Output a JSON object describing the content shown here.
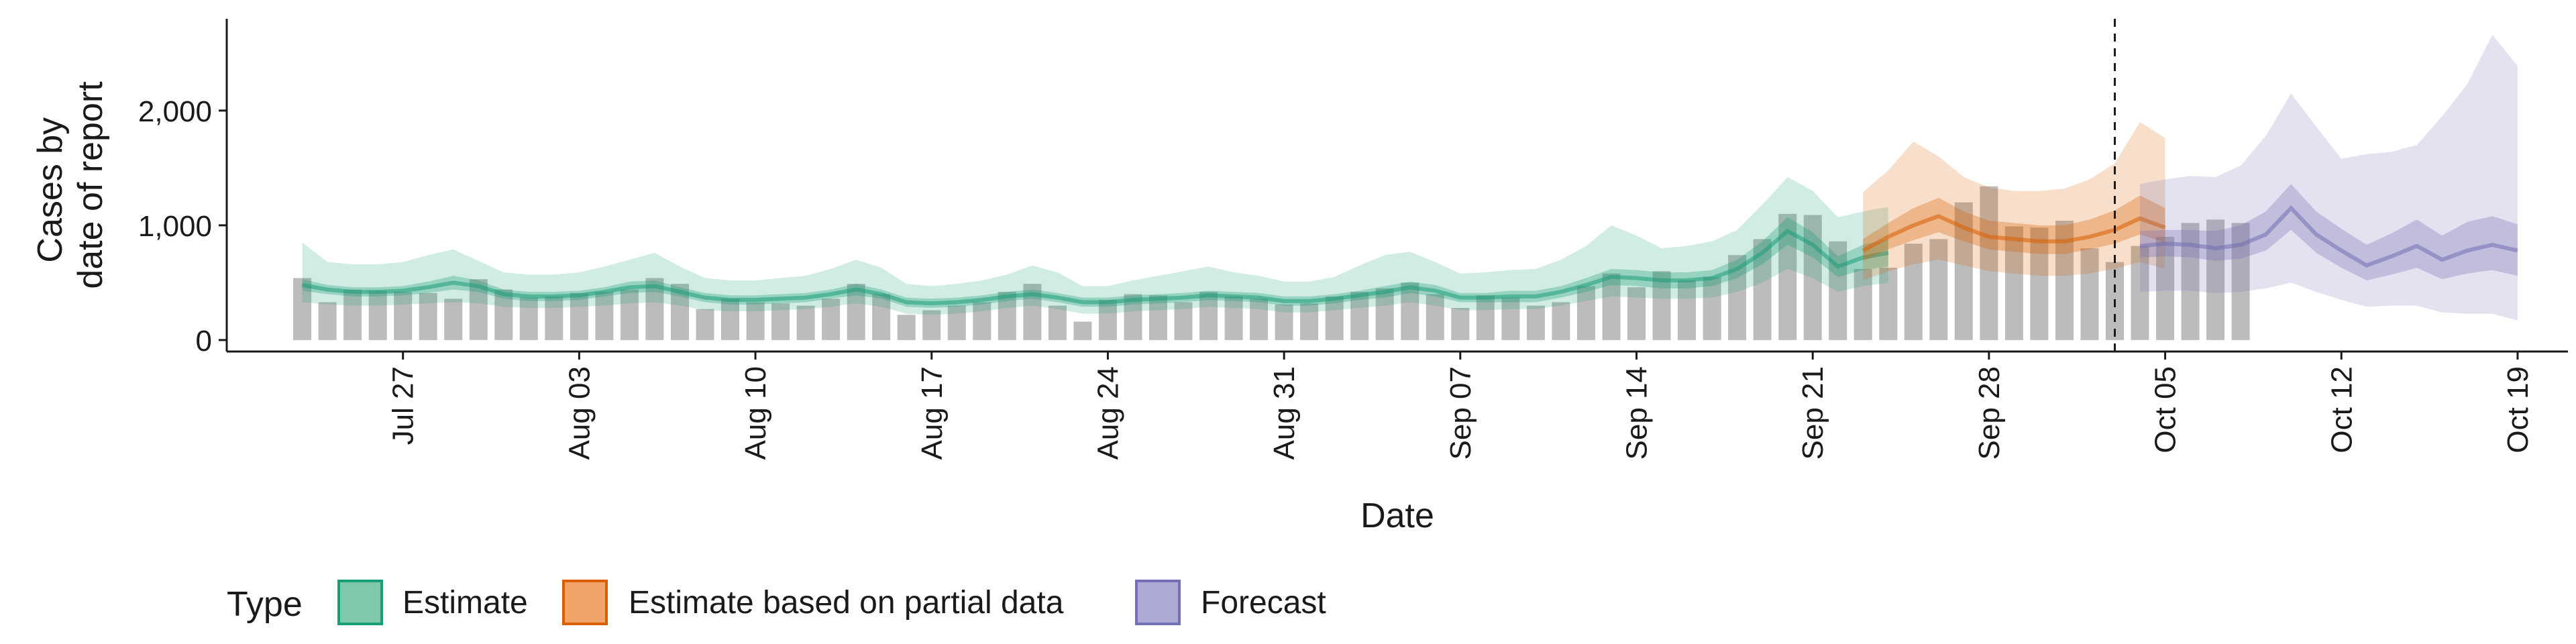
{
  "chart_data": {
    "type": "area",
    "title": "",
    "xlabel": "Date",
    "ylabel_lines": [
      "Cases by",
      "date of report"
    ],
    "ylim": [
      -100,
      2800
    ],
    "yticks": [
      0,
      1000,
      2000
    ],
    "ytick_labels": [
      "0",
      "1,000",
      "2,000"
    ],
    "x_domain": [
      "2020-07-20",
      "2020-10-21"
    ],
    "xticks": [
      "2020-07-27",
      "2020-08-03",
      "2020-08-10",
      "2020-08-17",
      "2020-08-24",
      "2020-08-31",
      "2020-09-07",
      "2020-09-14",
      "2020-09-21",
      "2020-09-28",
      "2020-10-05",
      "2020-10-12",
      "2020-10-19"
    ],
    "xtick_labels": [
      "Jul 27",
      "Aug 03",
      "Aug 10",
      "Aug 17",
      "Aug 24",
      "Aug 31",
      "Sep 07",
      "Sep 14",
      "Sep 21",
      "Sep 28",
      "Oct 05",
      "Oct 12",
      "Oct 19"
    ],
    "forecast_date": "2020-10-03",
    "legend": {
      "title": "Type",
      "position": "bottom",
      "entries": [
        {
          "name": "Estimate",
          "fill": "#7fc8a9",
          "stroke": "#1b9e77"
        },
        {
          "name": "Estimate based on partial data",
          "fill": "#f0a468",
          "stroke": "#d95f02"
        },
        {
          "name": "Forecast",
          "fill": "#adaad6",
          "stroke": "#7570b3"
        }
      ]
    },
    "colors": {
      "observed": "#a6a6a6",
      "estimate": "#1b9e77",
      "partial": "#d95f02",
      "forecast": "#7570b3"
    },
    "observed": {
      "start": "2020-07-23",
      "values": [
        540,
        330,
        440,
        430,
        420,
        410,
        360,
        530,
        440,
        370,
        380,
        410,
        420,
        440,
        540,
        490,
        270,
        360,
        330,
        320,
        300,
        360,
        490,
        400,
        220,
        260,
        300,
        330,
        420,
        490,
        300,
        160,
        350,
        400,
        390,
        330,
        420,
        380,
        360,
        310,
        320,
        380,
        420,
        450,
        500,
        400,
        280,
        390,
        370,
        300,
        330,
        470,
        580,
        460,
        600,
        520,
        550,
        740,
        880,
        1100,
        1090,
        860,
        620,
        630,
        840,
        880,
        1200,
        1340,
        990,
        980,
        1040,
        800,
        680,
        820,
        900,
        1020,
        1050,
        1020
      ]
    },
    "series": [
      {
        "name": "Estimate",
        "start": "2020-07-23",
        "median": [
          480,
          440,
          420,
          420,
          430,
          460,
          500,
          470,
          400,
          380,
          380,
          390,
          420,
          460,
          470,
          420,
          370,
          350,
          350,
          360,
          370,
          400,
          440,
          400,
          330,
          320,
          330,
          350,
          380,
          400,
          370,
          330,
          330,
          350,
          360,
          370,
          390,
          380,
          370,
          340,
          340,
          360,
          390,
          420,
          460,
          430,
          370,
          370,
          380,
          380,
          420,
          480,
          550,
          540,
          520,
          520,
          540,
          620,
          760,
          950,
          830,
          640,
          720,
          760
        ],
        "inner": [
          [
            430,
            530
          ],
          [
            400,
            480
          ],
          [
            380,
            460
          ],
          [
            380,
            460
          ],
          [
            390,
            470
          ],
          [
            410,
            510
          ],
          [
            440,
            560
          ],
          [
            420,
            520
          ],
          [
            360,
            440
          ],
          [
            340,
            420
          ],
          [
            340,
            420
          ],
          [
            350,
            430
          ],
          [
            380,
            460
          ],
          [
            410,
            510
          ],
          [
            420,
            520
          ],
          [
            380,
            460
          ],
          [
            330,
            410
          ],
          [
            310,
            390
          ],
          [
            310,
            390
          ],
          [
            320,
            400
          ],
          [
            330,
            410
          ],
          [
            360,
            440
          ],
          [
            390,
            490
          ],
          [
            360,
            440
          ],
          [
            290,
            370
          ],
          [
            280,
            360
          ],
          [
            290,
            370
          ],
          [
            310,
            390
          ],
          [
            340,
            420
          ],
          [
            360,
            440
          ],
          [
            330,
            410
          ],
          [
            290,
            370
          ],
          [
            290,
            370
          ],
          [
            310,
            390
          ],
          [
            320,
            400
          ],
          [
            330,
            410
          ],
          [
            350,
            430
          ],
          [
            340,
            420
          ],
          [
            330,
            410
          ],
          [
            300,
            380
          ],
          [
            300,
            380
          ],
          [
            320,
            400
          ],
          [
            350,
            430
          ],
          [
            370,
            470
          ],
          [
            410,
            510
          ],
          [
            380,
            480
          ],
          [
            330,
            410
          ],
          [
            330,
            410
          ],
          [
            330,
            430
          ],
          [
            330,
            430
          ],
          [
            370,
            470
          ],
          [
            420,
            540
          ],
          [
            480,
            620
          ],
          [
            470,
            610
          ],
          [
            450,
            590
          ],
          [
            450,
            590
          ],
          [
            470,
            610
          ],
          [
            540,
            700
          ],
          [
            660,
            860
          ],
          [
            830,
            1070
          ],
          [
            720,
            940
          ],
          [
            550,
            730
          ],
          [
            610,
            830
          ],
          [
            640,
            880
          ]
        ],
        "outer": [
          [
            330,
            850
          ],
          [
            310,
            680
          ],
          [
            300,
            660
          ],
          [
            300,
            660
          ],
          [
            310,
            680
          ],
          [
            320,
            740
          ],
          [
            330,
            790
          ],
          [
            320,
            690
          ],
          [
            290,
            590
          ],
          [
            280,
            570
          ],
          [
            280,
            570
          ],
          [
            290,
            590
          ],
          [
            300,
            640
          ],
          [
            320,
            700
          ],
          [
            330,
            760
          ],
          [
            300,
            640
          ],
          [
            260,
            540
          ],
          [
            250,
            520
          ],
          [
            250,
            520
          ],
          [
            260,
            540
          ],
          [
            270,
            560
          ],
          [
            290,
            620
          ],
          [
            320,
            700
          ],
          [
            290,
            630
          ],
          [
            230,
            490
          ],
          [
            220,
            470
          ],
          [
            230,
            490
          ],
          [
            250,
            520
          ],
          [
            280,
            570
          ],
          [
            300,
            650
          ],
          [
            270,
            590
          ],
          [
            230,
            470
          ],
          [
            230,
            470
          ],
          [
            250,
            520
          ],
          [
            260,
            560
          ],
          [
            270,
            600
          ],
          [
            290,
            640
          ],
          [
            280,
            590
          ],
          [
            270,
            560
          ],
          [
            240,
            510
          ],
          [
            240,
            510
          ],
          [
            260,
            550
          ],
          [
            280,
            650
          ],
          [
            300,
            740
          ],
          [
            330,
            770
          ],
          [
            300,
            680
          ],
          [
            260,
            580
          ],
          [
            260,
            590
          ],
          [
            270,
            610
          ],
          [
            270,
            620
          ],
          [
            300,
            700
          ],
          [
            340,
            820
          ],
          [
            380,
            1000
          ],
          [
            370,
            910
          ],
          [
            360,
            800
          ],
          [
            360,
            820
          ],
          [
            370,
            860
          ],
          [
            420,
            960
          ],
          [
            500,
            1180
          ],
          [
            620,
            1420
          ],
          [
            540,
            1300
          ],
          [
            420,
            1070
          ],
          [
            470,
            1120
          ],
          [
            500,
            1160
          ]
        ]
      },
      {
        "name": "Estimate based on partial data",
        "start": "2020-09-23",
        "median": [
          780,
          900,
          1000,
          1080,
          980,
          900,
          880,
          860,
          860,
          900,
          960,
          1060,
          980
        ],
        "inner": [
          [
            690,
            880
          ],
          [
            790,
            1020
          ],
          [
            870,
            1150
          ],
          [
            940,
            1240
          ],
          [
            860,
            1120
          ],
          [
            790,
            1040
          ],
          [
            770,
            1020
          ],
          [
            750,
            1000
          ],
          [
            750,
            1000
          ],
          [
            790,
            1050
          ],
          [
            840,
            1130
          ],
          [
            920,
            1260
          ],
          [
            850,
            1150
          ]
        ],
        "outer": [
          [
            520,
            1290
          ],
          [
            600,
            1480
          ],
          [
            660,
            1730
          ],
          [
            700,
            1600
          ],
          [
            650,
            1420
          ],
          [
            600,
            1330
          ],
          [
            580,
            1300
          ],
          [
            560,
            1300
          ],
          [
            560,
            1320
          ],
          [
            580,
            1400
          ],
          [
            620,
            1540
          ],
          [
            680,
            1900
          ],
          [
            620,
            1760
          ]
        ]
      },
      {
        "name": "Forecast",
        "start": "2020-10-04",
        "median": [
          820,
          840,
          830,
          800,
          830,
          920,
          1150,
          920,
          780,
          650,
          730,
          820,
          700,
          780,
          830,
          780
        ],
        "inner": [
          [
            720,
            950
          ],
          [
            730,
            960
          ],
          [
            720,
            960
          ],
          [
            690,
            950
          ],
          [
            710,
            1000
          ],
          [
            780,
            1120
          ],
          [
            960,
            1360
          ],
          [
            760,
            1120
          ],
          [
            630,
            970
          ],
          [
            520,
            830
          ],
          [
            570,
            930
          ],
          [
            630,
            1050
          ],
          [
            530,
            910
          ],
          [
            580,
            1030
          ],
          [
            610,
            1080
          ],
          [
            560,
            1010
          ]
        ],
        "outer": [
          [
            420,
            1360
          ],
          [
            430,
            1400
          ],
          [
            430,
            1430
          ],
          [
            410,
            1420
          ],
          [
            420,
            1520
          ],
          [
            450,
            1780
          ],
          [
            500,
            2150
          ],
          [
            420,
            1860
          ],
          [
            350,
            1580
          ],
          [
            290,
            1620
          ],
          [
            300,
            1640
          ],
          [
            300,
            1700
          ],
          [
            240,
            1950
          ],
          [
            230,
            2230
          ],
          [
            230,
            2660
          ],
          [
            170,
            2390
          ]
        ]
      }
    ]
  }
}
